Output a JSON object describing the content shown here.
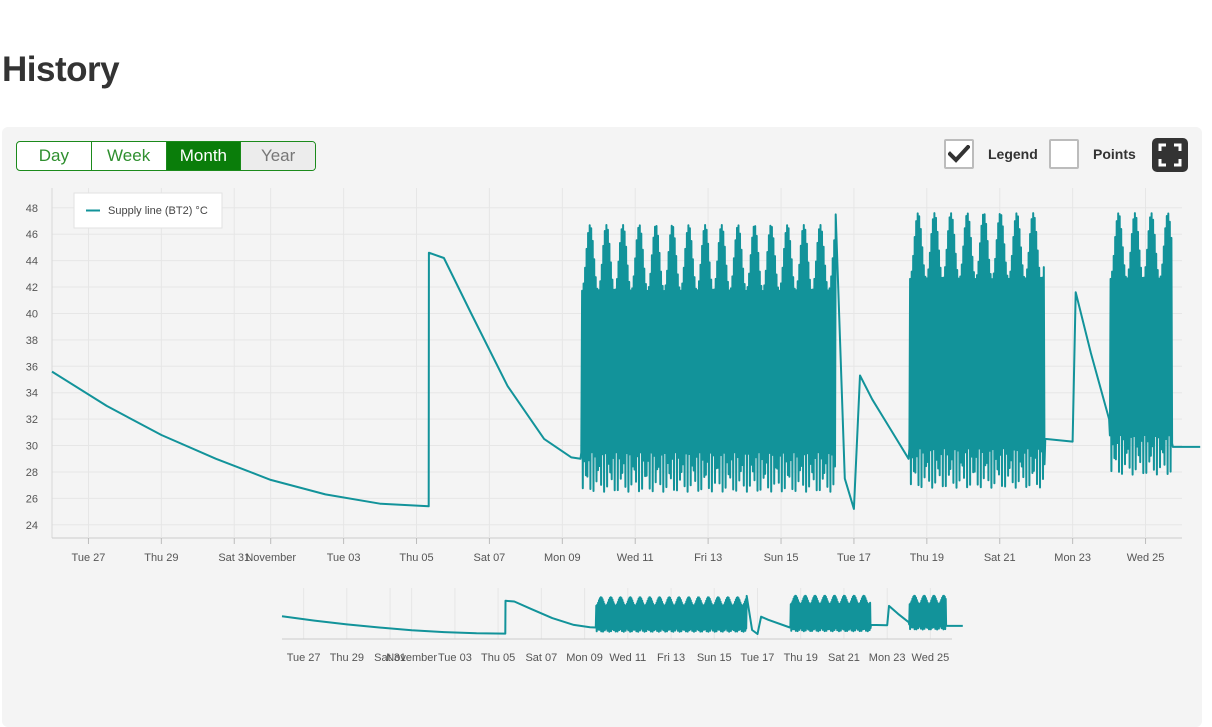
{
  "page": {
    "title": "History"
  },
  "controls": {
    "ranges": [
      {
        "label": "Day",
        "state": "normal"
      },
      {
        "label": "Week",
        "state": "normal"
      },
      {
        "label": "Month",
        "state": "active"
      },
      {
        "label": "Year",
        "state": "muted"
      }
    ],
    "legend_label": "Legend",
    "legend_checked": true,
    "points_label": "Points",
    "points_checked": false,
    "fullscreen_icon": "fullscreen-icon"
  },
  "colors": {
    "series": "#12939a",
    "accent": "#0a7d0a",
    "panel": "#f4f4f4"
  },
  "chart_data": {
    "type": "line",
    "title": "",
    "xlabel": "",
    "ylabel": "",
    "x_range": [
      "2020-10-26",
      "2020-11-26"
    ],
    "ylim": [
      23,
      49.5
    ],
    "y_ticks": [
      24,
      26,
      28,
      30,
      32,
      34,
      36,
      38,
      40,
      42,
      44,
      46,
      48
    ],
    "x_ticks": [
      {
        "date": "2020-10-27",
        "label": "Tue 27"
      },
      {
        "date": "2020-10-29",
        "label": "Thu 29"
      },
      {
        "date": "2020-10-31",
        "label": "Sat 31"
      },
      {
        "date": "2020-11-01",
        "label": "November"
      },
      {
        "date": "2020-11-03",
        "label": "Tue 03"
      },
      {
        "date": "2020-11-05",
        "label": "Thu 05"
      },
      {
        "date": "2020-11-07",
        "label": "Sat 07"
      },
      {
        "date": "2020-11-09",
        "label": "Mon 09"
      },
      {
        "date": "2020-11-11",
        "label": "Wed 11"
      },
      {
        "date": "2020-11-13",
        "label": "Fri 13"
      },
      {
        "date": "2020-11-15",
        "label": "Sun 15"
      },
      {
        "date": "2020-11-17",
        "label": "Tue 17"
      },
      {
        "date": "2020-11-19",
        "label": "Thu 19"
      },
      {
        "date": "2020-11-21",
        "label": "Sat 21"
      },
      {
        "date": "2020-11-23",
        "label": "Mon 23"
      },
      {
        "date": "2020-11-25",
        "label": "Wed 25"
      }
    ],
    "grid": true,
    "legend_position": "top-left",
    "navigator": true,
    "series": [
      {
        "name": "Supply line (BT2) °C",
        "points": [
          [
            "2020-10-26T00:00",
            35.6
          ],
          [
            "2020-10-27T12:00",
            33.0
          ],
          [
            "2020-10-29T00:00",
            30.8
          ],
          [
            "2020-10-30T12:00",
            29.0
          ],
          [
            "2020-11-01T00:00",
            27.4
          ],
          [
            "2020-11-02T12:00",
            26.3
          ],
          [
            "2020-11-04T00:00",
            25.6
          ],
          [
            "2020-11-05T08:00",
            25.4
          ],
          [
            "2020-11-05T08:10",
            44.6
          ],
          [
            "2020-11-05T18:00",
            44.2
          ],
          [
            "2020-11-06T12:00",
            40.0
          ],
          [
            "2020-11-07T12:00",
            34.5
          ],
          [
            "2020-11-08T12:00",
            30.5
          ],
          [
            "2020-11-09T06:00",
            29.1
          ],
          [
            "2020-11-09T12:00",
            29.0
          ],
          [
            "2020-11-16T12:00",
            47.5
          ],
          [
            "2020-11-16T18:00",
            27.5
          ],
          [
            "2020-11-17T00:00",
            25.2
          ],
          [
            "2020-11-17T04:00",
            35.3
          ],
          [
            "2020-11-17T12:00",
            33.5
          ],
          [
            "2020-11-18T12:00",
            29.0
          ],
          [
            "2020-11-22T06:00",
            30.5
          ],
          [
            "2020-11-23T00:00",
            30.3
          ],
          [
            "2020-11-23T02:00",
            41.6
          ],
          [
            "2020-11-23T12:00",
            37.0
          ],
          [
            "2020-11-24T00:00",
            32.0
          ],
          [
            "2020-11-25T18:00",
            29.9
          ],
          [
            "2020-11-26T12:00",
            29.9
          ]
        ],
        "high_frequency_bursts": [
          {
            "from": "2020-11-09T12:00",
            "to": "2020-11-16T12:00",
            "min": 26.5,
            "max": 46.7
          },
          {
            "from": "2020-11-18T12:00",
            "to": "2020-11-22T06:00",
            "min": 26.8,
            "max": 47.6
          },
          {
            "from": "2020-11-24T00:00",
            "to": "2020-11-25T18:00",
            "min": 27.8,
            "max": 47.6
          }
        ]
      }
    ]
  }
}
